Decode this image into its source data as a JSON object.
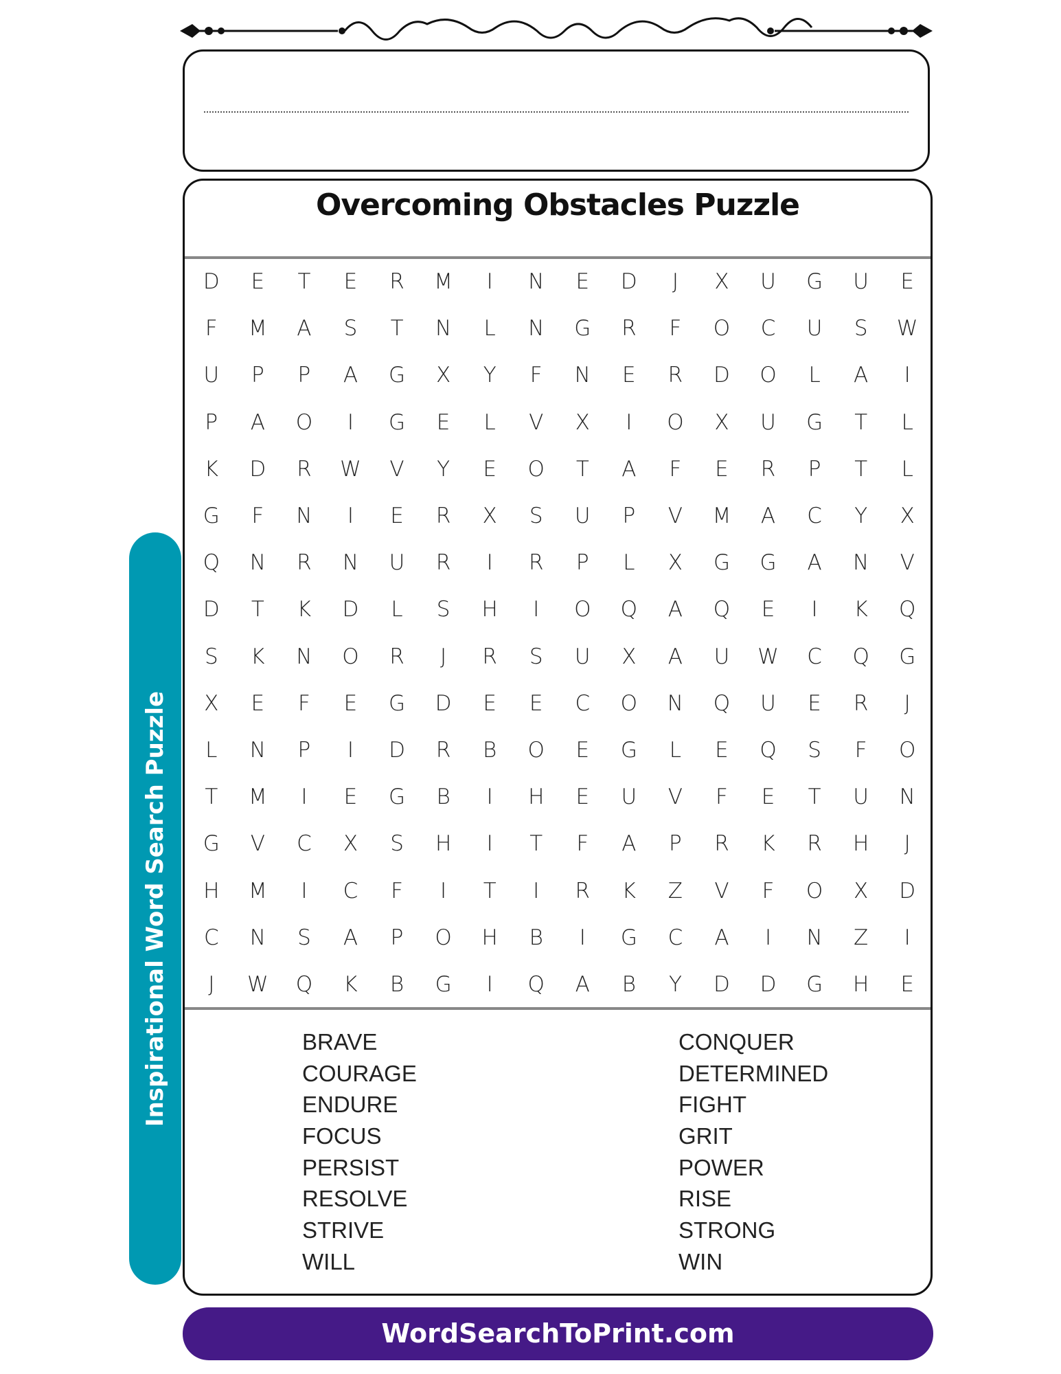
{
  "header": {
    "name_line_label": ""
  },
  "puzzle": {
    "title": "Overcoming Obstacles Puzzle",
    "grid": [
      [
        "D",
        "E",
        "T",
        "E",
        "R",
        "M",
        "I",
        "N",
        "E",
        "D",
        "J",
        "X",
        "U",
        "G",
        "U",
        "E"
      ],
      [
        "F",
        "M",
        "A",
        "S",
        "T",
        "N",
        "L",
        "N",
        "G",
        "R",
        "F",
        "O",
        "C",
        "U",
        "S",
        "W"
      ],
      [
        "U",
        "P",
        "P",
        "A",
        "G",
        "X",
        "Y",
        "F",
        "N",
        "E",
        "R",
        "D",
        "O",
        "L",
        "A",
        "I"
      ],
      [
        "P",
        "A",
        "O",
        "I",
        "G",
        "E",
        "L",
        "V",
        "X",
        "I",
        "O",
        "X",
        "U",
        "G",
        "T",
        "L"
      ],
      [
        "K",
        "D",
        "R",
        "W",
        "V",
        "Y",
        "E",
        "O",
        "T",
        "A",
        "F",
        "E",
        "R",
        "P",
        "T",
        "L"
      ],
      [
        "G",
        "F",
        "N",
        "I",
        "E",
        "R",
        "X",
        "S",
        "U",
        "P",
        "V",
        "M",
        "A",
        "C",
        "Y",
        "X"
      ],
      [
        "Q",
        "N",
        "R",
        "N",
        "U",
        "R",
        "I",
        "R",
        "P",
        "L",
        "X",
        "G",
        "G",
        "A",
        "N",
        "V"
      ],
      [
        "D",
        "T",
        "K",
        "D",
        "L",
        "S",
        "H",
        "I",
        "O",
        "Q",
        "A",
        "Q",
        "E",
        "I",
        "K",
        "Q"
      ],
      [
        "S",
        "K",
        "N",
        "O",
        "R",
        "J",
        "R",
        "S",
        "U",
        "X",
        "A",
        "U",
        "W",
        "C",
        "Q",
        "G"
      ],
      [
        "X",
        "E",
        "F",
        "E",
        "G",
        "D",
        "E",
        "E",
        "C",
        "O",
        "N",
        "Q",
        "U",
        "E",
        "R",
        "J"
      ],
      [
        "L",
        "N",
        "P",
        "I",
        "D",
        "R",
        "B",
        "O",
        "E",
        "G",
        "L",
        "E",
        "Q",
        "S",
        "F",
        "O"
      ],
      [
        "T",
        "M",
        "I",
        "E",
        "G",
        "B",
        "I",
        "H",
        "E",
        "U",
        "V",
        "F",
        "E",
        "T",
        "U",
        "N"
      ],
      [
        "G",
        "V",
        "C",
        "X",
        "S",
        "H",
        "I",
        "T",
        "F",
        "A",
        "P",
        "R",
        "K",
        "R",
        "H",
        "J"
      ],
      [
        "H",
        "M",
        "I",
        "C",
        "F",
        "I",
        "T",
        "I",
        "R",
        "K",
        "Z",
        "V",
        "F",
        "O",
        "X",
        "D"
      ],
      [
        "C",
        "N",
        "S",
        "A",
        "P",
        "O",
        "H",
        "B",
        "I",
        "G",
        "C",
        "A",
        "I",
        "N",
        "Z",
        "I"
      ],
      [
        "J",
        "W",
        "Q",
        "K",
        "B",
        "G",
        "I",
        "Q",
        "A",
        "B",
        "Y",
        "D",
        "D",
        "G",
        "H",
        "E"
      ]
    ],
    "words_left": [
      "BRAVE",
      "COURAGE",
      "ENDURE",
      "FOCUS",
      "PERSIST",
      "RESOLVE",
      "STRIVE",
      "WILL"
    ],
    "words_right": [
      "CONQUER",
      "DETERMINED",
      "FIGHT",
      "GRIT",
      "POWER",
      "RISE",
      "STRONG",
      "WIN"
    ]
  },
  "side_tab": {
    "label": "Inspirational Word Search Puzzle",
    "color": "#0099b2"
  },
  "footer": {
    "label": "WordSearchToPrint.com",
    "color": "#451a87"
  }
}
